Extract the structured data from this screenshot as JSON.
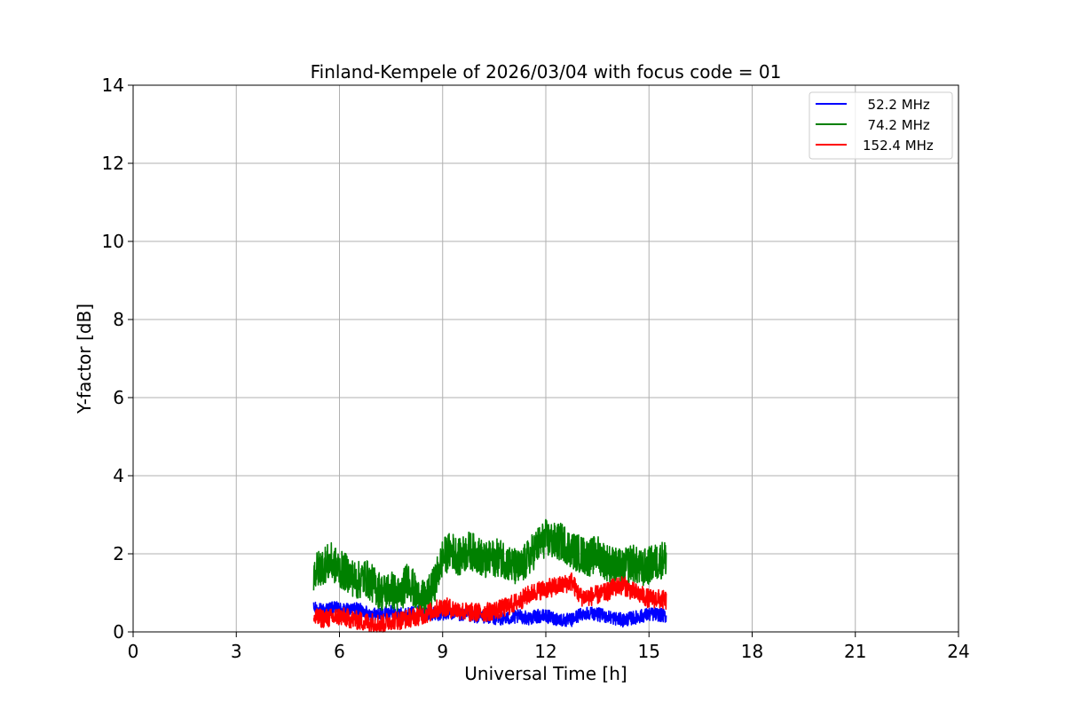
{
  "chart_data": {
    "type": "line",
    "title": "Finland-Kempele of 2026/03/04 with focus code = 01",
    "xlabel": "Universal Time [h]",
    "ylabel": "Y-factor [dB]",
    "xlim": [
      0,
      24
    ],
    "ylim": [
      0,
      14
    ],
    "xticks": [
      0,
      3,
      6,
      9,
      12,
      15,
      18,
      21,
      24
    ],
    "yticks": [
      0,
      2,
      4,
      6,
      8,
      10,
      12,
      14
    ],
    "grid": true,
    "legend_position": "top-right",
    "series": [
      {
        "name": "52.2 MHz",
        "legend_label": "  52.2 MHz",
        "color": "#0000ff",
        "x": [
          5.25,
          5.5,
          5.75,
          6.0,
          6.25,
          6.5,
          6.75,
          7.0,
          7.25,
          7.5,
          7.75,
          8.0,
          8.25,
          8.5,
          8.75,
          9.0,
          9.25,
          9.5,
          9.75,
          10.0,
          10.25,
          10.5,
          10.75,
          11.0,
          11.25,
          11.5,
          11.75,
          12.0,
          12.25,
          12.5,
          12.75,
          13.0,
          13.25,
          13.5,
          13.75,
          14.0,
          14.25,
          14.5,
          14.75,
          15.0,
          15.25,
          15.5
        ],
        "values": [
          0.6,
          0.55,
          0.6,
          0.6,
          0.55,
          0.6,
          0.5,
          0.45,
          0.45,
          0.5,
          0.45,
          0.45,
          0.5,
          0.5,
          0.45,
          0.45,
          0.5,
          0.45,
          0.4,
          0.4,
          0.4,
          0.35,
          0.35,
          0.35,
          0.4,
          0.35,
          0.4,
          0.4,
          0.35,
          0.3,
          0.3,
          0.45,
          0.5,
          0.45,
          0.4,
          0.35,
          0.3,
          0.35,
          0.4,
          0.45,
          0.45,
          0.4
        ],
        "noise": 0.25
      },
      {
        "name": "74.2 MHz",
        "legend_label": "  74.2 MHz",
        "color": "#008000",
        "x": [
          5.25,
          5.5,
          5.75,
          6.0,
          6.25,
          6.5,
          6.75,
          7.0,
          7.25,
          7.5,
          7.75,
          8.0,
          8.25,
          8.5,
          8.75,
          9.0,
          9.25,
          9.5,
          9.75,
          10.0,
          10.25,
          10.5,
          10.75,
          11.0,
          11.25,
          11.5,
          11.75,
          12.0,
          12.25,
          12.5,
          12.75,
          13.0,
          13.25,
          13.5,
          13.75,
          14.0,
          14.25,
          14.5,
          14.75,
          15.0,
          15.25,
          15.5
        ],
        "values": [
          1.5,
          1.7,
          1.8,
          1.6,
          1.5,
          1.3,
          1.4,
          1.2,
          1.0,
          1.1,
          0.9,
          1.4,
          0.9,
          0.8,
          1.2,
          1.9,
          2.1,
          1.9,
          2.1,
          2.0,
          1.8,
          1.9,
          1.9,
          1.7,
          1.6,
          1.9,
          2.2,
          2.4,
          2.3,
          2.3,
          2.1,
          2.0,
          1.9,
          2.0,
          1.8,
          1.7,
          1.6,
          1.8,
          1.6,
          1.7,
          1.8,
          1.9
        ],
        "noise": 0.7
      },
      {
        "name": "152.4 MHz",
        "legend_label": "152.4 MHz",
        "color": "#ff0000",
        "x": [
          5.25,
          5.5,
          5.75,
          6.0,
          6.25,
          6.5,
          6.75,
          7.0,
          7.25,
          7.5,
          7.75,
          8.0,
          8.25,
          8.5,
          8.75,
          9.0,
          9.25,
          9.5,
          9.75,
          10.0,
          10.25,
          10.5,
          10.75,
          11.0,
          11.25,
          11.5,
          11.75,
          12.0,
          12.25,
          12.5,
          12.75,
          13.0,
          13.25,
          13.5,
          13.75,
          14.0,
          14.25,
          14.5,
          14.75,
          15.0,
          15.25,
          15.5
        ],
        "values": [
          0.35,
          0.35,
          0.35,
          0.4,
          0.35,
          0.3,
          0.25,
          0.25,
          0.2,
          0.3,
          0.3,
          0.35,
          0.4,
          0.45,
          0.55,
          0.65,
          0.6,
          0.55,
          0.5,
          0.5,
          0.5,
          0.55,
          0.6,
          0.7,
          0.8,
          0.95,
          1.05,
          1.1,
          1.15,
          1.2,
          1.3,
          0.9,
          0.9,
          0.95,
          1.0,
          1.15,
          1.2,
          1.05,
          0.95,
          0.85,
          0.85,
          0.8
        ],
        "noise": 0.35
      }
    ]
  }
}
